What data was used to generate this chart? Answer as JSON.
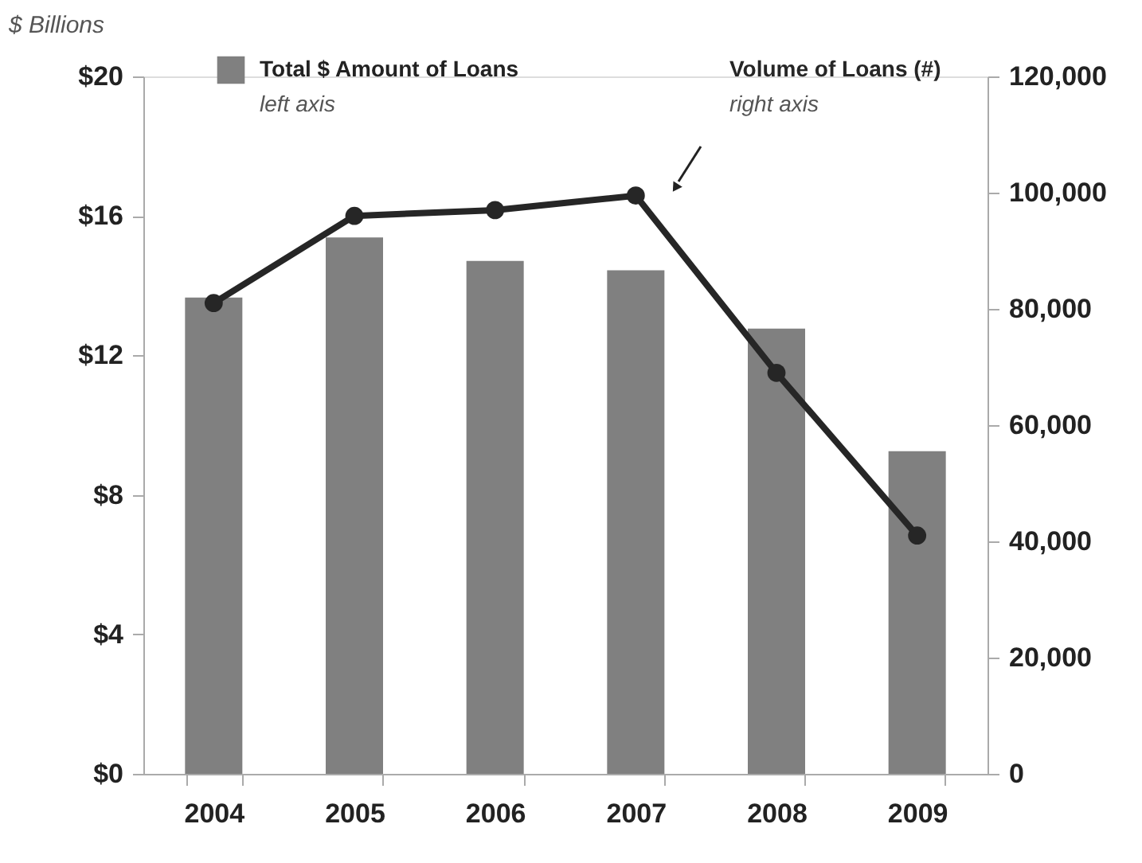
{
  "chart_data": {
    "type": "bar",
    "ylabel": "$ Billions",
    "categories": [
      "2004",
      "2005",
      "2006",
      "2007",
      "2008",
      "2009"
    ],
    "series": [
      {
        "name": "Total $ Amount of Loans",
        "color": "#808080",
        "values": [
          13.66,
          15.38,
          14.71,
          14.44,
          12.77,
          9.25
        ]
      },
      {
        "name": "Volume of Loans (#)",
        "type": "line",
        "axis": "y2",
        "color": "#262626",
        "values": [
          81000,
          96000,
          97000,
          99500,
          69000,
          41000
        ]
      }
    ],
    "annotations": [
      "left axis",
      "right axis"
    ],
    "ylim": [
      0,
      20
    ],
    "yticks": [
      {
        "value": 0,
        "label": "$0"
      },
      {
        "value": 4,
        "label": "$4"
      },
      {
        "value": 8,
        "label": "$8"
      },
      {
        "value": 12,
        "label": "$12"
      },
      {
        "value": 16,
        "label": "$16"
      },
      {
        "value": 20,
        "label": "$20"
      }
    ],
    "y2lim": [
      0,
      120000
    ],
    "y2ticks": [
      {
        "value": 0,
        "label": "0"
      },
      {
        "value": 20000,
        "label": "20,000"
      },
      {
        "value": 40000,
        "label": "40,000"
      },
      {
        "value": 60000,
        "label": "60,000"
      },
      {
        "value": 80000,
        "label": "80,000"
      },
      {
        "value": 100000,
        "label": "100,000"
      },
      {
        "value": 120000,
        "label": "120,000"
      }
    ],
    "grid": false,
    "legend": "top",
    "marker": "circle",
    "line_style": "solid"
  }
}
